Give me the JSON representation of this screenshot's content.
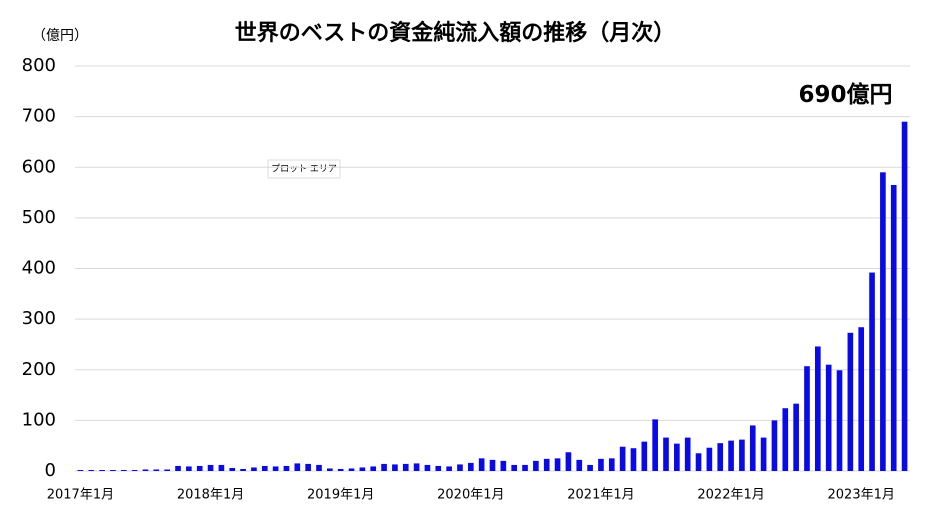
{
  "chart_data": {
    "type": "bar",
    "title": "世界のベストの資金純流入額の推移（月次）",
    "y_label": "（億円）",
    "annotation": "690億円",
    "tooltip": "プロット エリア",
    "color": "#0a0ae6",
    "grid": true,
    "ylim": [
      0,
      800
    ],
    "yticks": [
      0,
      100,
      200,
      300,
      400,
      500,
      600,
      700,
      800
    ],
    "categories": [
      "2017年1月",
      null,
      null,
      null,
      null,
      null,
      null,
      null,
      null,
      null,
      null,
      null,
      "2018年1月",
      null,
      null,
      null,
      null,
      null,
      null,
      null,
      null,
      null,
      null,
      null,
      "2019年1月",
      null,
      null,
      null,
      null,
      null,
      null,
      null,
      null,
      null,
      null,
      null,
      "2020年1月",
      null,
      null,
      null,
      null,
      null,
      null,
      null,
      null,
      null,
      null,
      null,
      "2021年1月",
      null,
      null,
      null,
      null,
      null,
      null,
      null,
      null,
      null,
      null,
      null,
      "2022年1月",
      null,
      null,
      null,
      null,
      null,
      null,
      null,
      null,
      null,
      null,
      null,
      "2023年1月",
      null,
      null,
      null,
      null
    ],
    "values": [
      2,
      2,
      2,
      2,
      2,
      2,
      3,
      3,
      3,
      10,
      9,
      10,
      12,
      12,
      6,
      4,
      7,
      10,
      9,
      10,
      15,
      14,
      12,
      5,
      4,
      5,
      7,
      9,
      14,
      13,
      14,
      15,
      12,
      10,
      9,
      13,
      16,
      25,
      22,
      20,
      12,
      12,
      20,
      24,
      25,
      37,
      22,
      12,
      24,
      25,
      48,
      45,
      58,
      102,
      66,
      54,
      66,
      35,
      46,
      55,
      60,
      62,
      90,
      66,
      100,
      124,
      133,
      207,
      246,
      210,
      199,
      273,
      284,
      392,
      590,
      565,
      690
    ]
  }
}
